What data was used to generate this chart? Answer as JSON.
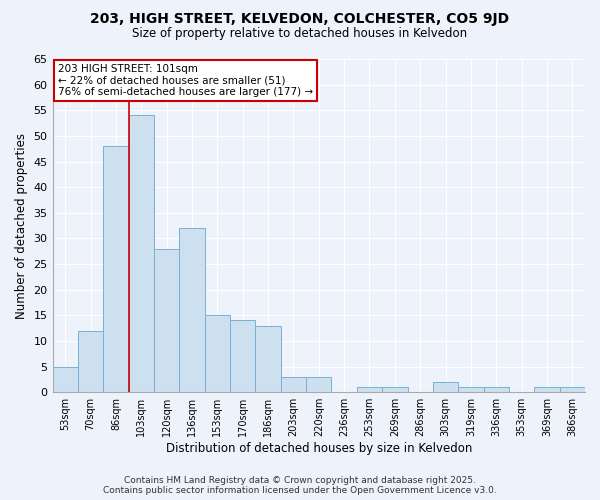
{
  "title": "203, HIGH STREET, KELVEDON, COLCHESTER, CO5 9JD",
  "subtitle": "Size of property relative to detached houses in Kelvedon",
  "xlabel": "Distribution of detached houses by size in Kelvedon",
  "ylabel": "Number of detached properties",
  "bar_color": "#cce0f0",
  "bar_edge_color": "#7ab0d4",
  "background_color": "#eef2fa",
  "grid_color": "#ffffff",
  "categories": [
    "53sqm",
    "70sqm",
    "86sqm",
    "103sqm",
    "120sqm",
    "136sqm",
    "153sqm",
    "170sqm",
    "186sqm",
    "203sqm",
    "220sqm",
    "236sqm",
    "253sqm",
    "269sqm",
    "286sqm",
    "303sqm",
    "319sqm",
    "336sqm",
    "353sqm",
    "369sqm",
    "386sqm"
  ],
  "values": [
    5,
    12,
    48,
    54,
    28,
    32,
    15,
    14,
    13,
    3,
    3,
    0,
    1,
    1,
    0,
    2,
    1,
    1,
    0,
    1,
    1
  ],
  "ylim": [
    0,
    65
  ],
  "yticks": [
    0,
    5,
    10,
    15,
    20,
    25,
    30,
    35,
    40,
    45,
    50,
    55,
    60,
    65
  ],
  "property_line_x": 3.5,
  "annotation_text": "203 HIGH STREET: 101sqm\n← 22% of detached houses are smaller (51)\n76% of semi-detached houses are larger (177) →",
  "annotation_box_color": "#ffffff",
  "annotation_border_color": "#cc0000",
  "property_line_color": "#cc0000",
  "footer_line1": "Contains HM Land Registry data © Crown copyright and database right 2025.",
  "footer_line2": "Contains public sector information licensed under the Open Government Licence v3.0."
}
